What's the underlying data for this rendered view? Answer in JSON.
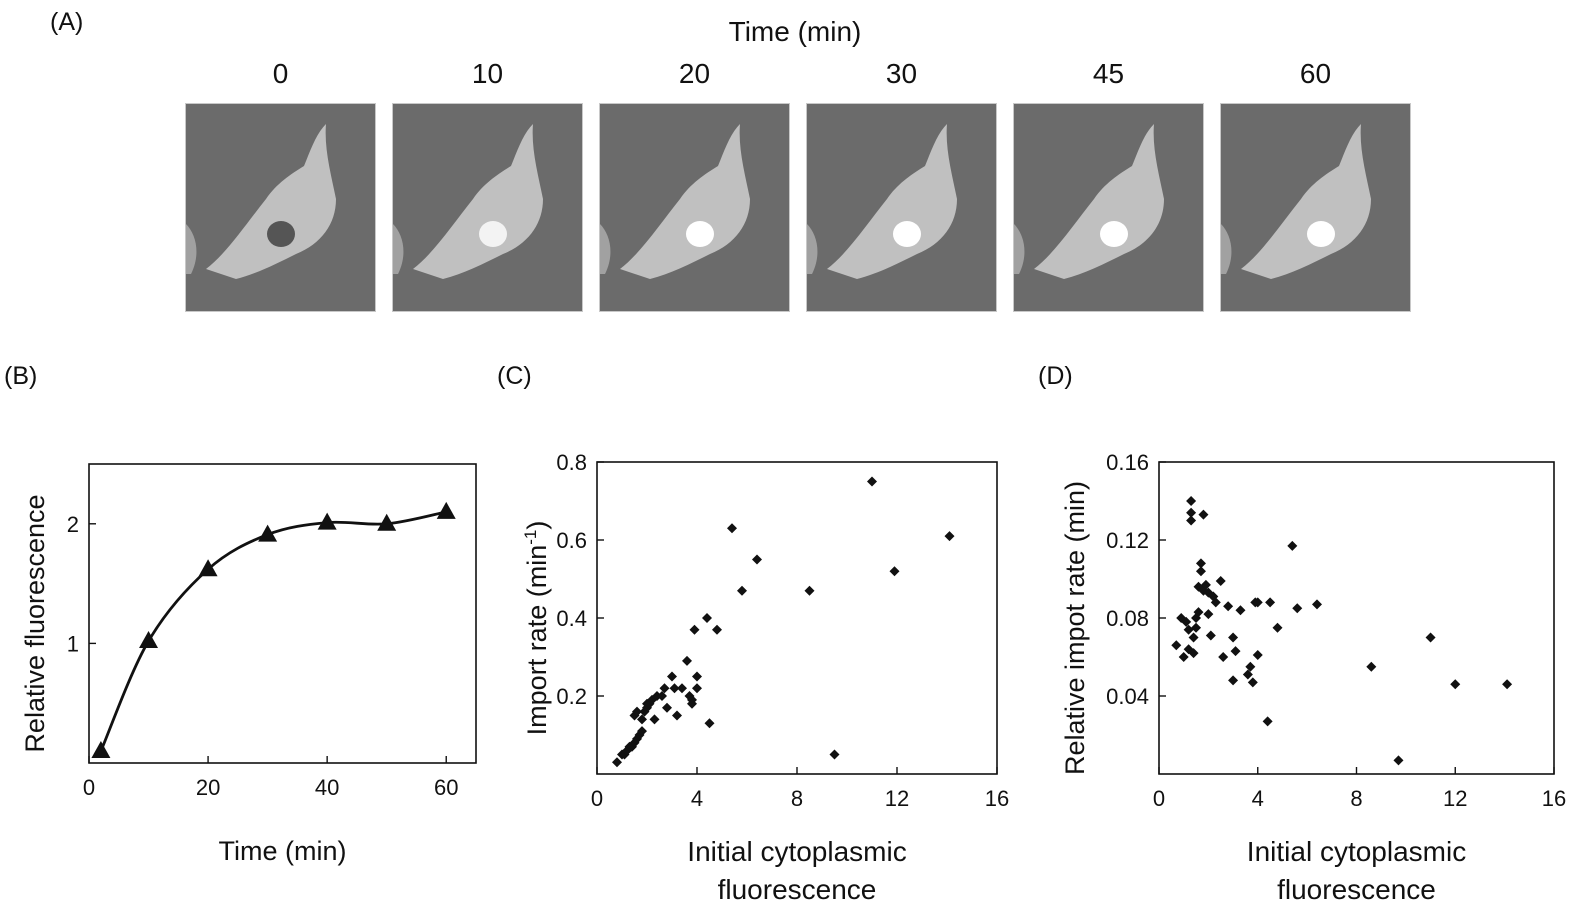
{
  "labels": {
    "a": "(A)",
    "b": "(B)",
    "c": "(C)",
    "d": "(D)"
  },
  "time_series_title": "Time (min)",
  "time_points": [
    "0",
    "10",
    "20",
    "30",
    "45",
    "60"
  ],
  "colors": {
    "image_bg": "#6b6b6b",
    "ink": "#111111"
  },
  "chart_data": [
    {
      "panel": "B",
      "type": "line",
      "xlabel": "Time (min)",
      "ylabel": "Relative fluorescence",
      "xlim": [
        0,
        65
      ],
      "ylim": [
        0,
        2.5
      ],
      "xticks": [
        0,
        20,
        40,
        60
      ],
      "yticks": [
        1,
        2
      ],
      "x": [
        2,
        10,
        20,
        30,
        40,
        50,
        60
      ],
      "y": [
        0.1,
        1.02,
        1.62,
        1.91,
        2.01,
        2.0,
        2.1
      ],
      "marker": "triangle"
    },
    {
      "panel": "C",
      "type": "scatter",
      "xlabel_lines": [
        "Initial cytoplasmic",
        "fluorescence"
      ],
      "ylabel": "Import rate (min",
      "ylabel_sup": "-1",
      "ylabel_end": ")",
      "xlim": [
        0,
        16
      ],
      "ylim": [
        0,
        0.8
      ],
      "xticks": [
        0,
        4,
        8,
        12,
        16
      ],
      "yticks": [
        0.2,
        0.4,
        0.6,
        0.8
      ],
      "ytick_labels": [
        "0.2",
        "0.4",
        "0.6",
        "0.8"
      ],
      "x": [
        0.8,
        1.0,
        1.1,
        1.2,
        1.3,
        1.4,
        1.5,
        1.5,
        1.6,
        1.6,
        1.7,
        1.8,
        1.8,
        1.9,
        2.0,
        2.0,
        2.1,
        2.2,
        2.3,
        2.4,
        2.6,
        2.7,
        2.8,
        3.0,
        3.1,
        3.2,
        3.4,
        3.6,
        3.7,
        3.8,
        3.8,
        3.9,
        4.0,
        4.0,
        4.4,
        4.5,
        4.8,
        5.4,
        5.8,
        6.4,
        8.5,
        9.5,
        11.0,
        11.9,
        14.1
      ],
      "y": [
        0.03,
        0.05,
        0.05,
        0.06,
        0.07,
        0.07,
        0.08,
        0.15,
        0.09,
        0.16,
        0.1,
        0.11,
        0.14,
        0.16,
        0.17,
        0.18,
        0.18,
        0.19,
        0.14,
        0.2,
        0.2,
        0.22,
        0.17,
        0.25,
        0.22,
        0.15,
        0.22,
        0.29,
        0.2,
        0.19,
        0.18,
        0.37,
        0.25,
        0.22,
        0.4,
        0.13,
        0.37,
        0.63,
        0.47,
        0.55,
        0.47,
        0.05,
        0.75,
        0.52,
        0.61
      ]
    },
    {
      "panel": "D",
      "type": "scatter",
      "xlabel_lines": [
        "Initial cytoplasmic",
        "fluorescence"
      ],
      "ylabel": "Relative impot rate (min)",
      "xlim": [
        0,
        16
      ],
      "ylim": [
        0,
        0.16
      ],
      "xticks": [
        0,
        4,
        8,
        12,
        16
      ],
      "yticks": [
        0.04,
        0.08,
        0.12,
        0.16
      ],
      "ytick_labels": [
        "0.04",
        "0.08",
        "0.12",
        "0.16"
      ],
      "x": [
        0.7,
        0.9,
        1.0,
        1.1,
        1.2,
        1.2,
        1.3,
        1.3,
        1.3,
        1.4,
        1.4,
        1.5,
        1.5,
        1.6,
        1.6,
        1.7,
        1.7,
        1.8,
        1.8,
        1.9,
        2.0,
        2.0,
        2.1,
        2.2,
        2.3,
        2.5,
        2.6,
        2.8,
        3.0,
        3.0,
        3.1,
        3.3,
        3.6,
        3.7,
        3.8,
        3.9,
        4.0,
        4.0,
        4.4,
        4.5,
        4.8,
        5.4,
        5.6,
        6.4,
        8.6,
        9.7,
        11.0,
        12.0,
        14.1
      ],
      "y": [
        0.066,
        0.08,
        0.06,
        0.078,
        0.074,
        0.064,
        0.14,
        0.134,
        0.13,
        0.07,
        0.062,
        0.08,
        0.075,
        0.083,
        0.096,
        0.108,
        0.104,
        0.133,
        0.094,
        0.097,
        0.082,
        0.093,
        0.071,
        0.091,
        0.088,
        0.099,
        0.06,
        0.086,
        0.048,
        0.07,
        0.063,
        0.084,
        0.051,
        0.055,
        0.047,
        0.088,
        0.061,
        0.088,
        0.027,
        0.088,
        0.075,
        0.117,
        0.085,
        0.087,
        0.055,
        0.007,
        0.07,
        0.046,
        0.046
      ]
    }
  ]
}
